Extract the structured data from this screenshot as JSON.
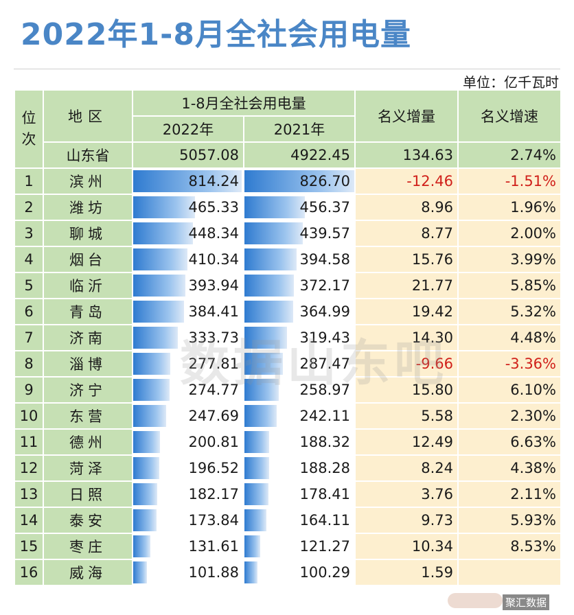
{
  "title": "2022年1-8月全社会用电量",
  "unit": "单位：亿千瓦时",
  "headers": {
    "rank": "位次",
    "region": "地区",
    "group": "1-8月全社会用电量",
    "y2022": "2022年",
    "y2021": "2021年",
    "inc": "名义增量",
    "rate": "名义增速"
  },
  "province": {
    "name": "山东省",
    "y2022": "5057.08",
    "y2021": "4922.45",
    "inc": "134.63",
    "rate": "2.74%"
  },
  "max_value": 826.7,
  "rows": [
    {
      "rank": "1",
      "city": "滨州",
      "y2022": "814.24",
      "y2021": "826.70",
      "inc": "-12.46",
      "rate": "-1.51%"
    },
    {
      "rank": "2",
      "city": "潍坊",
      "y2022": "465.33",
      "y2021": "456.37",
      "inc": "8.96",
      "rate": "1.96%"
    },
    {
      "rank": "3",
      "city": "聊城",
      "y2022": "448.34",
      "y2021": "439.57",
      "inc": "8.77",
      "rate": "2.00%"
    },
    {
      "rank": "4",
      "city": "烟台",
      "y2022": "410.34",
      "y2021": "394.58",
      "inc": "15.76",
      "rate": "3.99%"
    },
    {
      "rank": "5",
      "city": "临沂",
      "y2022": "393.94",
      "y2021": "372.17",
      "inc": "21.77",
      "rate": "5.85%"
    },
    {
      "rank": "6",
      "city": "青岛",
      "y2022": "384.41",
      "y2021": "364.99",
      "inc": "19.42",
      "rate": "5.32%"
    },
    {
      "rank": "7",
      "city": "济南",
      "y2022": "333.73",
      "y2021": "319.43",
      "inc": "14.30",
      "rate": "4.48%"
    },
    {
      "rank": "8",
      "city": "淄博",
      "y2022": "277.81",
      "y2021": "287.47",
      "inc": "-9.66",
      "rate": "-3.36%"
    },
    {
      "rank": "9",
      "city": "济宁",
      "y2022": "274.77",
      "y2021": "258.97",
      "inc": "15.80",
      "rate": "6.10%"
    },
    {
      "rank": "10",
      "city": "东营",
      "y2022": "247.69",
      "y2021": "242.11",
      "inc": "5.58",
      "rate": "2.30%"
    },
    {
      "rank": "11",
      "city": "德州",
      "y2022": "200.81",
      "y2021": "188.32",
      "inc": "12.49",
      "rate": "6.63%"
    },
    {
      "rank": "12",
      "city": "菏泽",
      "y2022": "196.52",
      "y2021": "188.28",
      "inc": "8.24",
      "rate": "4.38%"
    },
    {
      "rank": "13",
      "city": "日照",
      "y2022": "182.17",
      "y2021": "178.41",
      "inc": "3.76",
      "rate": "2.11%"
    },
    {
      "rank": "14",
      "city": "泰安",
      "y2022": "173.84",
      "y2021": "164.11",
      "inc": "9.73",
      "rate": "5.93%"
    },
    {
      "rank": "15",
      "city": "枣庄",
      "y2022": "131.61",
      "y2021": "121.27",
      "inc": "10.34",
      "rate": "8.53%"
    },
    {
      "rank": "16",
      "city": "威海",
      "y2022": "101.88",
      "y2021": "100.29",
      "inc": "1.59",
      "rate": ""
    }
  ],
  "watermark": "数据山东吧",
  "badge": "聚汇数据",
  "colors": {
    "title": "#4a86c6",
    "header_bg": "#c6e0b4",
    "value_bg": "#fdefcf",
    "negative": "#d0201a",
    "bar": "#2f7bd0"
  }
}
